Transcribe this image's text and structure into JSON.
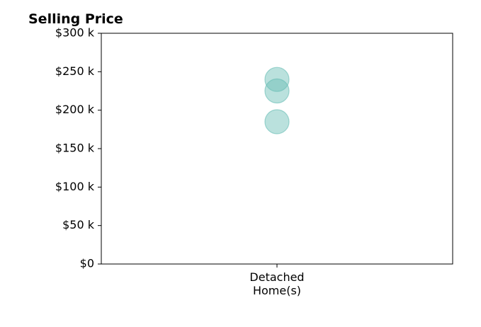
{
  "chart_data": {
    "type": "scatter",
    "title": "Selling Price",
    "xlabel": "",
    "ylabel": "",
    "categories": [
      "Detached\nHome(s)"
    ],
    "ylim": [
      0,
      300000
    ],
    "y_ticks": [
      0,
      50000,
      100000,
      150000,
      200000,
      250000,
      300000
    ],
    "y_tick_labels": [
      "$0",
      "$50 k",
      "$100 k",
      "$150 k",
      "$200 k",
      "$250 k",
      "$300 k"
    ],
    "series": [
      {
        "points": [
          {
            "category": "Detached\nHome(s)",
            "y": 240000
          },
          {
            "category": "Detached\nHome(s)",
            "y": 225000
          },
          {
            "category": "Detached\nHome(s)",
            "y": 185000
          }
        ]
      }
    ],
    "grid": false,
    "marker_color": "#66bdb4"
  }
}
